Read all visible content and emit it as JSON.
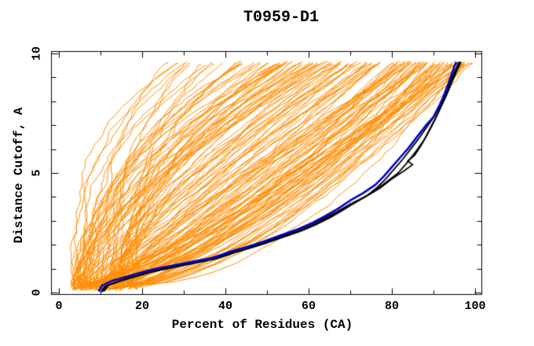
{
  "title": "T0959-D1",
  "colors": {
    "background": "#ffffff",
    "axis": "#000000",
    "text": "#000000",
    "ensemble_orange": "#ff8c00",
    "highlight_blue": "#0000cc",
    "highlight_black": "#000000"
  },
  "chart_data": {
    "type": "line",
    "title": "T0959-D1",
    "xlabel": "Percent of Residues (CA)",
    "ylabel": "Distance Cutoff, A",
    "xlim": [
      0,
      100
    ],
    "ylim": [
      0,
      10
    ],
    "grid": false,
    "legend": "none",
    "x_ticks_major": [
      0,
      20,
      40,
      60,
      80,
      100
    ],
    "x_ticks_minor": [
      10,
      30,
      50,
      70,
      90
    ],
    "y_ticks_major": [
      0,
      5,
      10
    ],
    "y_ticks_minor": [
      1,
      2,
      3,
      4,
      6,
      7,
      8,
      9
    ],
    "background_series": {
      "name": "other-models-ensemble",
      "color": "#ff8c00",
      "count": 150,
      "seed": 20180959,
      "line_width": 1,
      "y_start_range": [
        0.08,
        0.35
      ],
      "y_end_range": [
        9.5,
        9.68
      ],
      "x_start_range": [
        3,
        19
      ],
      "x_end_range": [
        20,
        99
      ],
      "note": "approx 150 thin orange model curves fanning from ~3-19% at 0 A up to 20-99% at ~9.6 A; dense cluster reaching 80-97% at top, sparse poor models reaching only 20-50%"
    },
    "series": [
      {
        "name": "model-black-1",
        "color": "#000000",
        "line_width": 1.8,
        "points": [
          [
            10,
            0.02
          ],
          [
            11,
            0.25
          ],
          [
            14,
            0.45
          ],
          [
            18,
            0.65
          ],
          [
            22,
            0.85
          ],
          [
            26,
            1.0
          ],
          [
            30,
            1.14
          ],
          [
            34,
            1.28
          ],
          [
            38,
            1.42
          ],
          [
            42,
            1.66
          ],
          [
            46,
            1.86
          ],
          [
            50,
            2.08
          ],
          [
            54,
            2.32
          ],
          [
            58,
            2.56
          ],
          [
            62,
            2.86
          ],
          [
            65,
            3.12
          ],
          [
            68,
            3.42
          ],
          [
            71,
            3.74
          ],
          [
            74,
            4.05
          ],
          [
            76.5,
            4.4
          ],
          [
            78.5,
            4.75
          ],
          [
            80.5,
            5.15
          ],
          [
            82.5,
            5.55
          ],
          [
            84.5,
            6.0
          ],
          [
            86.5,
            6.45
          ],
          [
            88.5,
            6.95
          ],
          [
            90.3,
            7.4
          ],
          [
            91.8,
            7.9
          ],
          [
            93,
            8.35
          ],
          [
            94,
            8.8
          ],
          [
            95,
            9.2
          ],
          [
            96.1,
            9.65
          ]
        ]
      },
      {
        "name": "model-black-2",
        "color": "#000000",
        "line_width": 1.8,
        "points": [
          [
            10.8,
            0.05
          ],
          [
            12,
            0.32
          ],
          [
            15.5,
            0.55
          ],
          [
            19.5,
            0.75
          ],
          [
            23.5,
            0.95
          ],
          [
            27.5,
            1.1
          ],
          [
            31.5,
            1.25
          ],
          [
            35.5,
            1.4
          ],
          [
            39.5,
            1.6
          ],
          [
            43.5,
            1.82
          ],
          [
            47.5,
            2.02
          ],
          [
            51.5,
            2.25
          ],
          [
            55.5,
            2.5
          ],
          [
            59.5,
            2.78
          ],
          [
            63,
            3.05
          ],
          [
            66.5,
            3.35
          ],
          [
            70,
            3.7
          ],
          [
            73.5,
            4.0
          ],
          [
            77,
            4.35
          ],
          [
            80,
            4.75
          ],
          [
            83,
            5.1
          ],
          [
            85,
            5.35
          ],
          [
            83.8,
            5.5
          ],
          [
            85.5,
            5.75
          ],
          [
            87,
            6.15
          ],
          [
            88.5,
            6.6
          ],
          [
            90,
            7.1
          ],
          [
            91.5,
            7.65
          ],
          [
            93,
            8.2
          ],
          [
            94.2,
            8.7
          ],
          [
            95.3,
            9.15
          ],
          [
            96.6,
            9.65
          ]
        ]
      },
      {
        "name": "model-black-3",
        "color": "#000000",
        "line_width": 1.8,
        "points": [
          [
            10.4,
            0.03
          ],
          [
            11.5,
            0.28
          ],
          [
            15,
            0.5
          ],
          [
            19,
            0.7
          ],
          [
            23,
            0.9
          ],
          [
            27,
            1.05
          ],
          [
            31,
            1.2
          ],
          [
            35,
            1.35
          ],
          [
            39,
            1.52
          ],
          [
            43,
            1.75
          ],
          [
            47,
            1.95
          ],
          [
            51,
            2.18
          ],
          [
            55,
            2.42
          ],
          [
            59,
            2.68
          ],
          [
            62.5,
            2.95
          ],
          [
            66,
            3.25
          ],
          [
            69.5,
            3.6
          ],
          [
            72.5,
            3.9
          ],
          [
            75.5,
            4.2
          ],
          [
            78.5,
            4.6
          ],
          [
            81.5,
            5.0
          ],
          [
            84,
            5.5
          ],
          [
            86,
            5.95
          ],
          [
            87.8,
            6.4
          ],
          [
            89.3,
            6.9
          ],
          [
            90.8,
            7.4
          ],
          [
            92,
            7.9
          ],
          [
            93.2,
            8.4
          ],
          [
            94.4,
            8.9
          ],
          [
            95.5,
            9.3
          ],
          [
            96.3,
            9.65
          ]
        ]
      },
      {
        "name": "model-blue-best",
        "color": "#0000cc",
        "line_width": 2.6,
        "points": [
          [
            9.5,
            0.05
          ],
          [
            10.4,
            0.3
          ],
          [
            13,
            0.5
          ],
          [
            17,
            0.7
          ],
          [
            21,
            0.9
          ],
          [
            25,
            1.05
          ],
          [
            29,
            1.18
          ],
          [
            33,
            1.32
          ],
          [
            37,
            1.45
          ],
          [
            41,
            1.7
          ],
          [
            45,
            1.9
          ],
          [
            49,
            2.12
          ],
          [
            53,
            2.38
          ],
          [
            57,
            2.62
          ],
          [
            61,
            2.92
          ],
          [
            64,
            3.2
          ],
          [
            67,
            3.5
          ],
          [
            70,
            3.85
          ],
          [
            73,
            4.15
          ],
          [
            76,
            4.5
          ],
          [
            78,
            4.85
          ],
          [
            80,
            5.25
          ],
          [
            82,
            5.65
          ],
          [
            84,
            6.05
          ],
          [
            86,
            6.5
          ],
          [
            88,
            6.95
          ],
          [
            90,
            7.35
          ],
          [
            91.5,
            7.85
          ],
          [
            92.5,
            8.25
          ],
          [
            93.5,
            8.7
          ],
          [
            94.3,
            9.1
          ],
          [
            95,
            9.45
          ],
          [
            95.5,
            9.65
          ]
        ]
      }
    ]
  }
}
